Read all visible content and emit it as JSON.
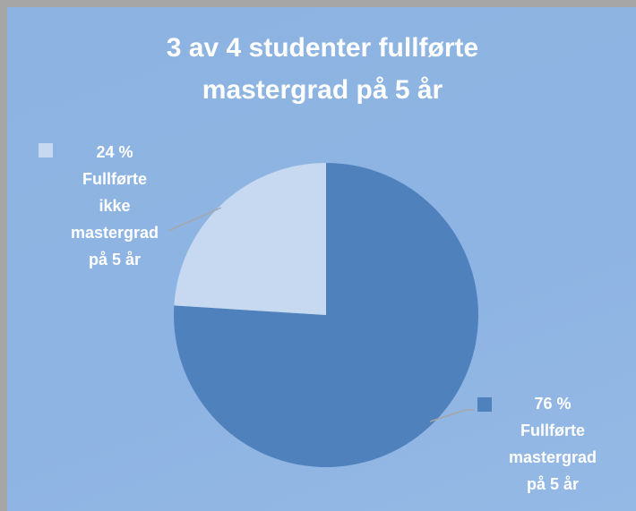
{
  "chart_data": {
    "type": "pie",
    "title": "3 av 4 studenter fullførte mastergrad på  5 år",
    "categories": [
      "Fullførte mastergrad på 5 år",
      "Fullførte ikke mastergrad på 5 år"
    ],
    "values": [
      76,
      24
    ],
    "value_labels": [
      "76 %",
      "24 %"
    ],
    "colors": [
      "#4f81bd",
      "#c6d9f1"
    ]
  }
}
